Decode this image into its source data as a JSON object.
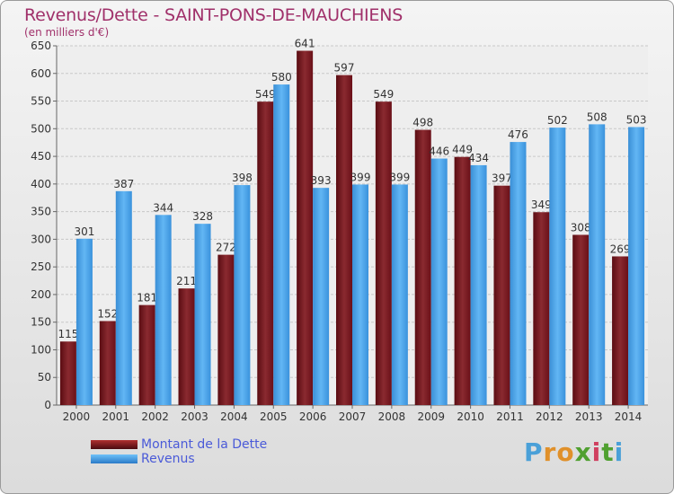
{
  "title": "Revenus/Dette - SAINT-PONS-DE-MAUCHIENS",
  "subtitle": "(en milliers d'€)",
  "colors": {
    "dette": "#7a1c22",
    "revenus": "#3e9be2"
  },
  "legend": {
    "dette_label": "Montant de la Dette",
    "revenus_label": "Revenus"
  },
  "logo": {
    "letters": [
      "P",
      "r",
      "o",
      "x",
      "i",
      "t",
      "i"
    ],
    "colors": [
      "#4aa0d8",
      "#e0902a",
      "#e0902a",
      "#50a030",
      "#d04060",
      "#50a030",
      "#4aa0d8"
    ]
  },
  "chart_data": {
    "type": "bar",
    "categories": [
      "2000",
      "2001",
      "2002",
      "2003",
      "2004",
      "2005",
      "2006",
      "2007",
      "2008",
      "2009",
      "2010",
      "2011",
      "2012",
      "2013",
      "2014"
    ],
    "series": [
      {
        "name": "Montant de la Dette",
        "values": [
          115,
          152,
          181,
          211,
          272,
          549,
          641,
          597,
          549,
          498,
          449,
          397,
          349,
          308,
          269
        ]
      },
      {
        "name": "Revenus",
        "values": [
          301,
          387,
          344,
          328,
          398,
          580,
          393,
          399,
          399,
          446,
          434,
          476,
          502,
          508,
          503
        ]
      }
    ],
    "ylim": [
      0,
      650
    ],
    "yticks": [
      0,
      50,
      100,
      150,
      200,
      250,
      300,
      350,
      400,
      450,
      500,
      550,
      600,
      650
    ],
    "grid": true,
    "legend_position": "bottom-left"
  }
}
